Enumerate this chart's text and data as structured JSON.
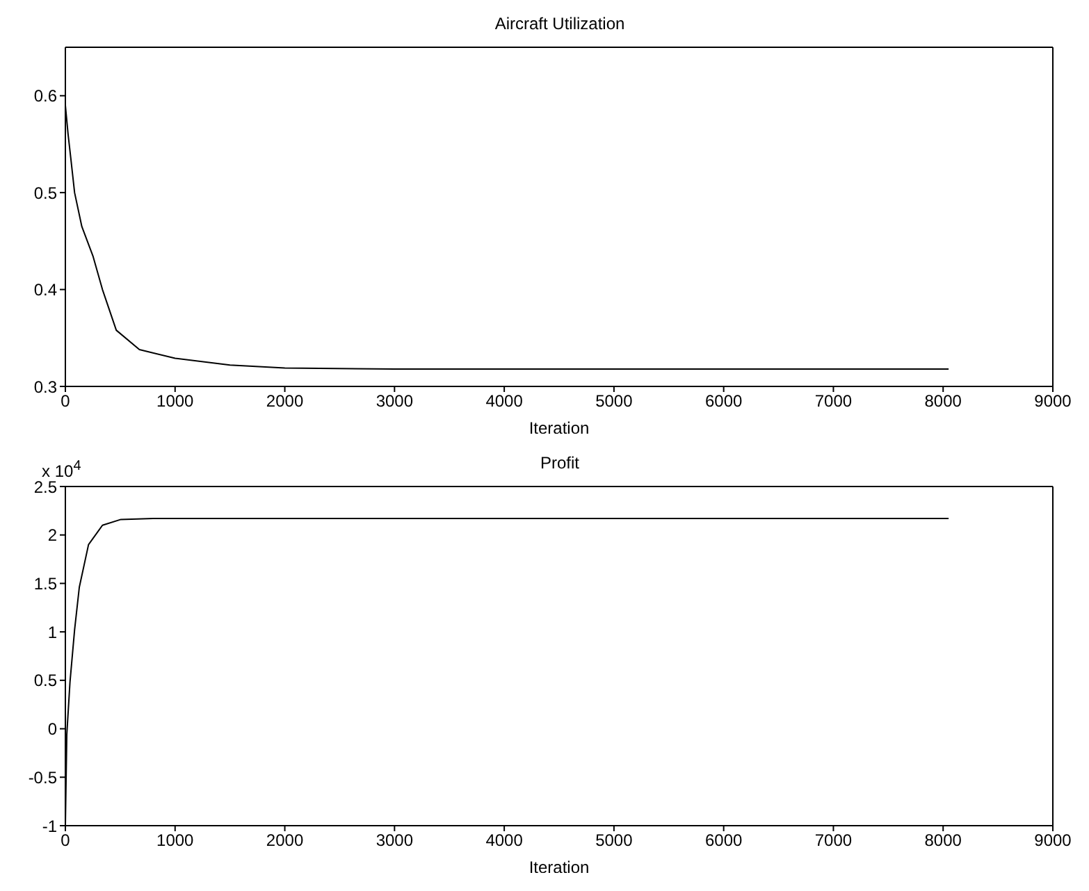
{
  "chart_data": [
    {
      "type": "line",
      "title": "Aircraft Utilization",
      "xlabel": "Iteration",
      "xlim": [
        0,
        9000
      ],
      "xticks": [
        0,
        1000,
        2000,
        3000,
        4000,
        5000,
        6000,
        7000,
        8000,
        9000
      ],
      "ylim": [
        0.3,
        0.65
      ],
      "yticks": [
        0.3,
        0.4,
        0.5,
        0.6
      ],
      "marker": "none",
      "line_style": "solid",
      "series": [
        {
          "color": "#000000",
          "x": [
            0,
            25,
            50,
            84,
            150,
            253,
            338,
            464,
            675,
            1000,
            1500,
            2000,
            3000,
            5000,
            8050
          ],
          "values": [
            0.59,
            0.56,
            0.535,
            0.5,
            0.465,
            0.434,
            0.4,
            0.358,
            0.338,
            0.329,
            0.322,
            0.319,
            0.318,
            0.318,
            0.318
          ]
        }
      ]
    },
    {
      "type": "line",
      "title": "Profit",
      "xlabel": "Iteration",
      "annotations": [
        "x 10$^{4}$"
      ],
      "xlim": [
        0,
        9000
      ],
      "xticks": [
        0,
        1000,
        2000,
        3000,
        4000,
        5000,
        6000,
        7000,
        8000,
        9000
      ],
      "ylim": [
        -1,
        2.5
      ],
      "yticks": [
        -1,
        -0.5,
        0,
        0.5,
        1,
        1.5,
        2,
        2.5
      ],
      "marker": "none",
      "line_style": "solid",
      "series": [
        {
          "color": "#000000",
          "x": [
            0,
            13,
            42,
            84,
            127,
            211,
            338,
            506,
            800,
            1500,
            3000,
            8050
          ],
          "values": [
            -1,
            -0.06,
            0.48,
            1.02,
            1.46,
            1.9,
            2.1,
            2.16,
            2.17,
            2.17,
            2.17,
            2.17
          ]
        }
      ]
    }
  ]
}
